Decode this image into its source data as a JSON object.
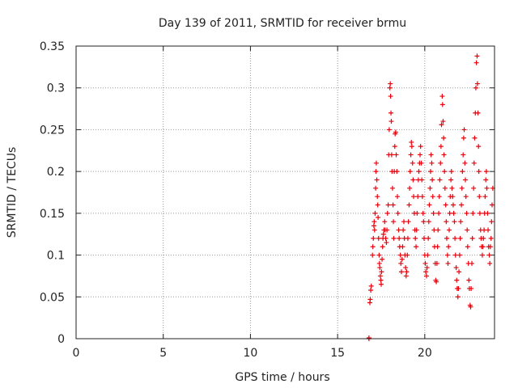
{
  "chart_data": {
    "type": "scatter",
    "title": "Day 139 of 2011, SRMTID for receiver brmu",
    "xlabel": "GPS time / hours",
    "ylabel": "SRMTID / TECUs",
    "xlim": [
      0,
      24
    ],
    "ylim": [
      0,
      0.35
    ],
    "x_ticks": [
      0,
      5,
      10,
      15,
      20
    ],
    "y_ticks": [
      0,
      0.05,
      0.1,
      0.15,
      0.2,
      0.25,
      0.3,
      0.35
    ],
    "x_tick_labels": [
      "0",
      "5",
      "10",
      "15",
      "20"
    ],
    "y_tick_labels": [
      "0",
      "0.05",
      "0.1",
      "0.15",
      "0.2",
      "0.25",
      "0.3",
      "0.35"
    ],
    "grid": true,
    "marker": "+",
    "color": "#e8000b",
    "series": [
      {
        "values": [
          [
            16.8,
            0.0
          ],
          [
            16.8,
            0.001
          ],
          [
            16.85,
            0.043
          ],
          [
            16.87,
            0.047
          ],
          [
            16.9,
            0.058
          ],
          [
            16.93,
            0.063
          ],
          [
            17.0,
            0.1
          ],
          [
            17.02,
            0.11
          ],
          [
            17.05,
            0.12
          ],
          [
            17.08,
            0.135
          ],
          [
            17.1,
            0.14
          ],
          [
            17.12,
            0.13
          ],
          [
            17.15,
            0.15
          ],
          [
            17.18,
            0.18
          ],
          [
            17.2,
            0.2
          ],
          [
            17.22,
            0.21
          ],
          [
            17.25,
            0.19
          ],
          [
            17.28,
            0.17
          ],
          [
            17.3,
            0.16
          ],
          [
            17.32,
            0.145
          ],
          [
            17.35,
            0.12
          ],
          [
            17.38,
            0.1
          ],
          [
            17.4,
            0.09
          ],
          [
            17.42,
            0.085
          ],
          [
            17.45,
            0.075
          ],
          [
            17.48,
            0.07
          ],
          [
            17.5,
            0.065
          ],
          [
            17.52,
            0.08
          ],
          [
            17.55,
            0.095
          ],
          [
            17.58,
            0.11
          ],
          [
            17.6,
            0.12
          ],
          [
            17.63,
            0.125
          ],
          [
            17.66,
            0.13
          ],
          [
            17.7,
            0.14
          ],
          [
            17.73,
            0.13
          ],
          [
            17.76,
            0.12
          ],
          [
            17.8,
            0.115
          ],
          [
            17.83,
            0.13
          ],
          [
            17.86,
            0.15
          ],
          [
            17.9,
            0.16
          ],
          [
            17.93,
            0.22
          ],
          [
            17.96,
            0.25
          ],
          [
            18.0,
            0.3
          ],
          [
            18.02,
            0.305
          ],
          [
            18.04,
            0.29
          ],
          [
            18.06,
            0.27
          ],
          [
            18.08,
            0.26
          ],
          [
            18.1,
            0.22
          ],
          [
            18.12,
            0.2
          ],
          [
            18.15,
            0.18
          ],
          [
            18.18,
            0.16
          ],
          [
            18.2,
            0.14
          ],
          [
            18.22,
            0.12
          ],
          [
            18.25,
            0.2
          ],
          [
            18.28,
            0.23
          ],
          [
            18.3,
            0.245
          ],
          [
            18.33,
            0.247
          ],
          [
            18.36,
            0.22
          ],
          [
            18.4,
            0.2
          ],
          [
            18.43,
            0.17
          ],
          [
            18.46,
            0.15
          ],
          [
            18.5,
            0.13
          ],
          [
            18.53,
            0.12
          ],
          [
            18.56,
            0.11
          ],
          [
            18.6,
            0.1
          ],
          [
            18.63,
            0.09
          ],
          [
            18.66,
            0.08
          ],
          [
            18.7,
            0.095
          ],
          [
            18.73,
            0.11
          ],
          [
            18.76,
            0.13
          ],
          [
            18.8,
            0.14
          ],
          [
            18.83,
            0.12
          ],
          [
            18.86,
            0.1
          ],
          [
            18.9,
            0.085
          ],
          [
            18.93,
            0.075
          ],
          [
            18.96,
            0.08
          ],
          [
            19.0,
            0.1
          ],
          [
            19.03,
            0.12
          ],
          [
            19.06,
            0.14
          ],
          [
            19.1,
            0.16
          ],
          [
            19.13,
            0.18
          ],
          [
            19.16,
            0.2
          ],
          [
            19.2,
            0.22
          ],
          [
            19.23,
            0.235
          ],
          [
            19.26,
            0.23
          ],
          [
            19.3,
            0.21
          ],
          [
            19.33,
            0.19
          ],
          [
            19.36,
            0.17
          ],
          [
            19.4,
            0.15
          ],
          [
            19.43,
            0.13
          ],
          [
            19.46,
            0.12
          ],
          [
            19.5,
            0.11
          ],
          [
            19.53,
            0.13
          ],
          [
            19.56,
            0.15
          ],
          [
            19.6,
            0.17
          ],
          [
            19.63,
            0.19
          ],
          [
            19.66,
            0.2
          ],
          [
            19.7,
            0.21
          ],
          [
            19.73,
            0.22
          ],
          [
            19.76,
            0.23
          ],
          [
            19.8,
            0.21
          ],
          [
            19.83,
            0.19
          ],
          [
            19.86,
            0.17
          ],
          [
            19.9,
            0.15
          ],
          [
            19.93,
            0.14
          ],
          [
            19.96,
            0.12
          ],
          [
            20.0,
            0.1
          ],
          [
            20.03,
            0.09
          ],
          [
            20.06,
            0.08
          ],
          [
            20.1,
            0.075
          ],
          [
            20.13,
            0.085
          ],
          [
            20.16,
            0.1
          ],
          [
            20.2,
            0.12
          ],
          [
            20.23,
            0.14
          ],
          [
            20.26,
            0.16
          ],
          [
            20.3,
            0.18
          ],
          [
            20.33,
            0.2
          ],
          [
            20.36,
            0.22
          ],
          [
            20.4,
            0.21
          ],
          [
            20.43,
            0.19
          ],
          [
            20.46,
            0.17
          ],
          [
            20.5,
            0.15
          ],
          [
            20.53,
            0.13
          ],
          [
            20.56,
            0.11
          ],
          [
            20.6,
            0.09
          ],
          [
            20.63,
            0.07
          ],
          [
            20.66,
            0.068
          ],
          [
            20.7,
            0.09
          ],
          [
            20.73,
            0.11
          ],
          [
            20.76,
            0.13
          ],
          [
            20.8,
            0.15
          ],
          [
            20.83,
            0.17
          ],
          [
            20.86,
            0.19
          ],
          [
            20.9,
            0.21
          ],
          [
            20.93,
            0.23
          ],
          [
            20.96,
            0.256
          ],
          [
            21.0,
            0.29
          ],
          [
            21.02,
            0.28
          ],
          [
            21.05,
            0.26
          ],
          [
            21.08,
            0.24
          ],
          [
            21.1,
            0.22
          ],
          [
            21.13,
            0.2
          ],
          [
            21.16,
            0.18
          ],
          [
            21.2,
            0.16
          ],
          [
            21.23,
            0.14
          ],
          [
            21.26,
            0.12
          ],
          [
            21.3,
            0.1
          ],
          [
            21.33,
            0.09
          ],
          [
            21.36,
            0.11
          ],
          [
            21.4,
            0.13
          ],
          [
            21.43,
            0.15
          ],
          [
            21.46,
            0.17
          ],
          [
            21.5,
            0.19
          ],
          [
            21.53,
            0.2
          ],
          [
            21.56,
            0.18
          ],
          [
            21.6,
            0.17
          ],
          [
            21.63,
            0.16
          ],
          [
            21.66,
            0.15
          ],
          [
            21.7,
            0.14
          ],
          [
            21.73,
            0.12
          ],
          [
            21.76,
            0.1
          ],
          [
            21.8,
            0.085
          ],
          [
            21.83,
            0.07
          ],
          [
            21.86,
            0.06
          ],
          [
            21.9,
            0.05
          ],
          [
            21.93,
            0.06
          ],
          [
            21.96,
            0.08
          ],
          [
            22.0,
            0.1
          ],
          [
            22.03,
            0.12
          ],
          [
            22.06,
            0.14
          ],
          [
            22.1,
            0.16
          ],
          [
            22.13,
            0.18
          ],
          [
            22.16,
            0.2
          ],
          [
            22.2,
            0.22
          ],
          [
            22.23,
            0.24
          ],
          [
            22.26,
            0.25
          ],
          [
            22.3,
            0.21
          ],
          [
            22.33,
            0.19
          ],
          [
            22.36,
            0.17
          ],
          [
            22.4,
            0.15
          ],
          [
            22.43,
            0.13
          ],
          [
            22.46,
            0.11
          ],
          [
            22.5,
            0.09
          ],
          [
            22.53,
            0.07
          ],
          [
            22.56,
            0.06
          ],
          [
            22.6,
            0.04
          ],
          [
            22.63,
            0.038
          ],
          [
            22.66,
            0.06
          ],
          [
            22.7,
            0.09
          ],
          [
            22.73,
            0.12
          ],
          [
            22.76,
            0.15
          ],
          [
            22.8,
            0.18
          ],
          [
            22.83,
            0.21
          ],
          [
            22.86,
            0.24
          ],
          [
            22.9,
            0.27
          ],
          [
            22.93,
            0.3
          ],
          [
            22.96,
            0.33
          ],
          [
            23.0,
            0.338
          ],
          [
            23.02,
            0.305
          ],
          [
            23.05,
            0.27
          ],
          [
            23.08,
            0.23
          ],
          [
            23.1,
            0.2
          ],
          [
            23.13,
            0.17
          ],
          [
            23.16,
            0.15
          ],
          [
            23.2,
            0.13
          ],
          [
            23.23,
            0.12
          ],
          [
            23.26,
            0.11
          ],
          [
            23.3,
            0.1
          ],
          [
            23.33,
            0.11
          ],
          [
            23.36,
            0.12
          ],
          [
            23.4,
            0.13
          ],
          [
            23.43,
            0.15
          ],
          [
            23.46,
            0.17
          ],
          [
            23.5,
            0.19
          ],
          [
            23.53,
            0.2
          ],
          [
            23.56,
            0.18
          ],
          [
            23.6,
            0.15
          ],
          [
            23.63,
            0.13
          ],
          [
            23.66,
            0.11
          ],
          [
            23.7,
            0.1
          ],
          [
            23.73,
            0.09
          ],
          [
            23.76,
            0.11
          ],
          [
            23.8,
            0.12
          ],
          [
            23.83,
            0.14
          ],
          [
            23.86,
            0.16
          ],
          [
            23.9,
            0.18
          ]
        ]
      }
    ]
  }
}
